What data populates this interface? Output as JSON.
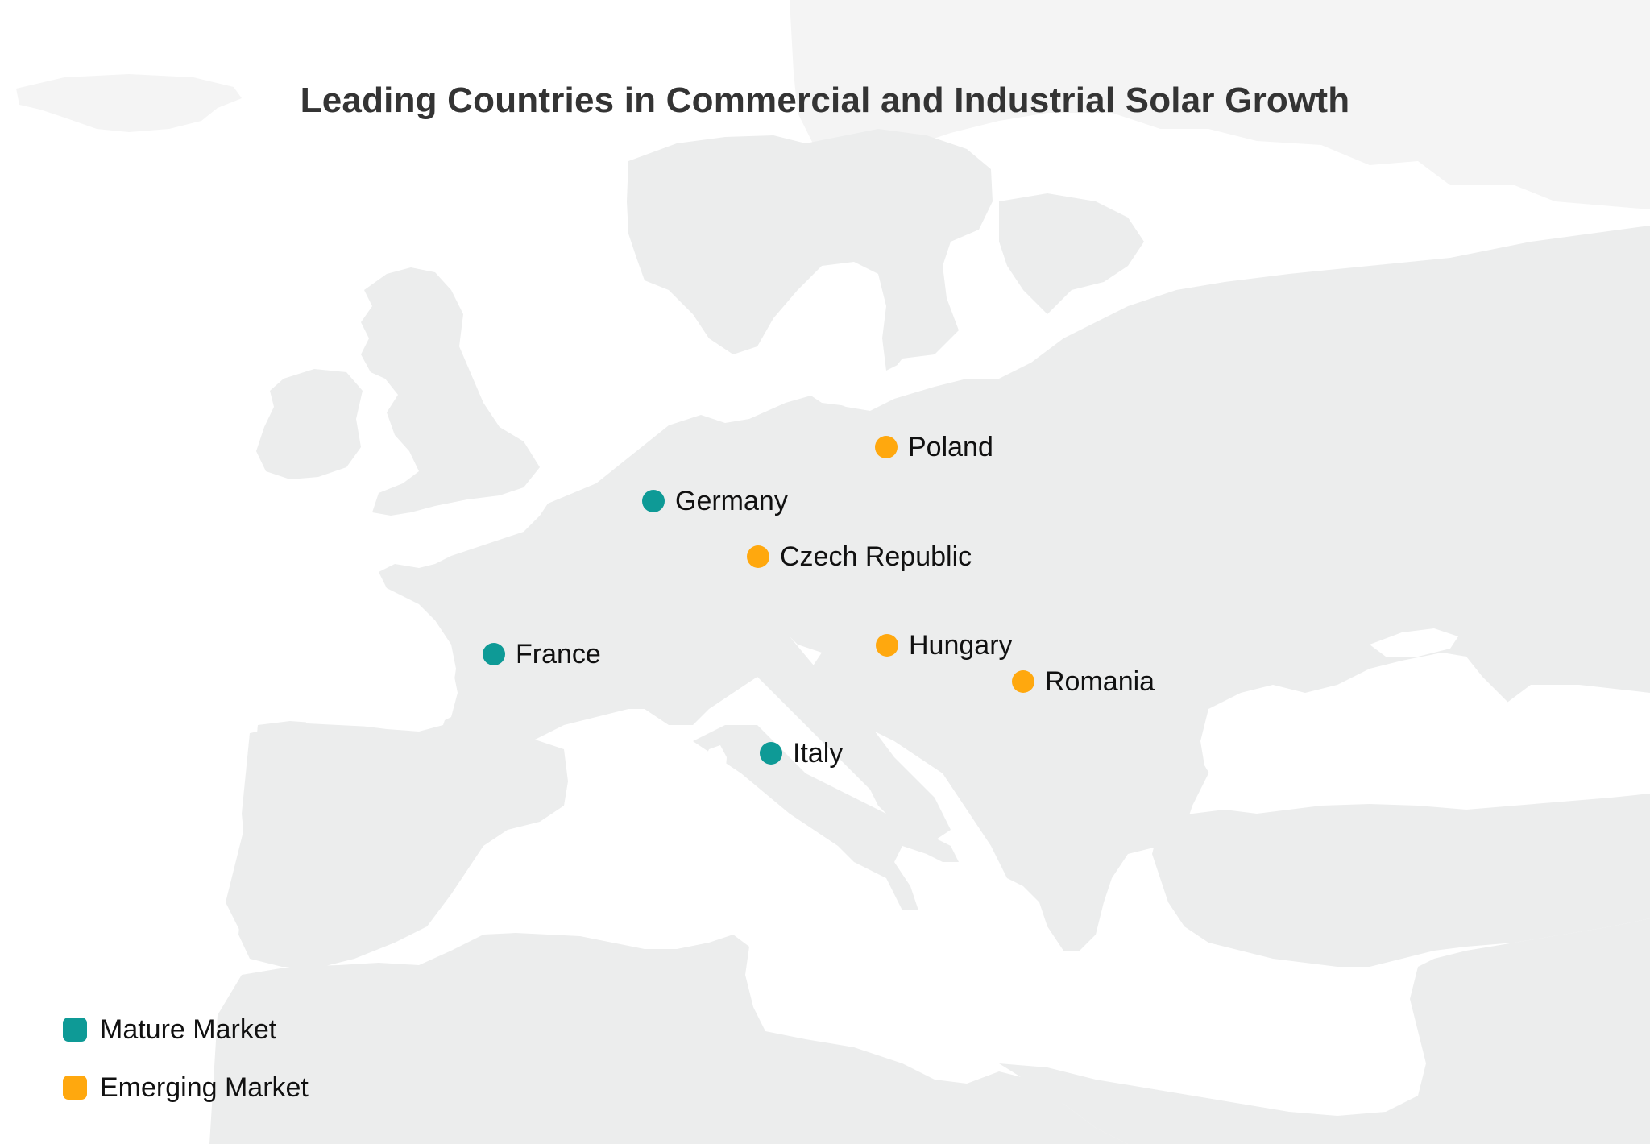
{
  "title": "Leading Countries in Commercial and Industrial Solar Growth",
  "colors": {
    "land": "#eceded",
    "land_far": "#f4f4f4",
    "sea": "#ffffff",
    "mature": "#0e9a96",
    "emerging": "#ffa80e",
    "text": "#111111",
    "title": "#343434"
  },
  "legend": [
    {
      "key": "mature",
      "label": "Mature Market"
    },
    {
      "key": "emerging",
      "label": "Emerging Market"
    }
  ],
  "markers": [
    {
      "key": "poland",
      "label": "Poland",
      "category": "emerging"
    },
    {
      "key": "germany",
      "label": "Germany",
      "category": "mature"
    },
    {
      "key": "czech-republic",
      "label": "Czech Republic",
      "category": "emerging"
    },
    {
      "key": "france",
      "label": "France",
      "category": "mature"
    },
    {
      "key": "hungary",
      "label": "Hungary",
      "category": "emerging"
    },
    {
      "key": "romania",
      "label": "Romania",
      "category": "emerging"
    },
    {
      "key": "italy",
      "label": "Italy",
      "category": "mature"
    }
  ]
}
